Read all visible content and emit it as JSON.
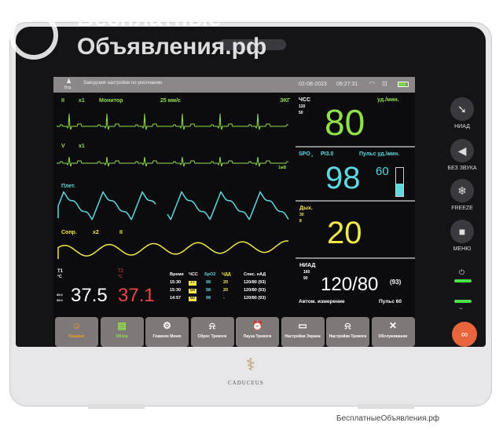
{
  "watermark": {
    "top_line1": "Бесплатные",
    "top_line2": "Объявления.рф",
    "bottom": "БесплатныеОбъявления.рф"
  },
  "header": {
    "patient_type": "Взр.",
    "message": "Заводские настройки по умолчанию",
    "date": "02-08-2023",
    "time": "09:27:31"
  },
  "ecg1": {
    "lead": "II",
    "gain": "x1",
    "mode": "Монитор",
    "speed": "25 мм/с",
    "label": "ЭКГ"
  },
  "ecg2": {
    "lead": "V",
    "gain": "x1",
    "scale": "1мВ"
  },
  "pleth": {
    "label": "Плет."
  },
  "resp_wave": {
    "label": "Сопр.",
    "gain": "x2",
    "lead": "II"
  },
  "hr": {
    "label": "ЧСС",
    "high": "120",
    "low": "50",
    "unit": "уд./мин.",
    "value": "80"
  },
  "spo2": {
    "label": "SPO",
    "sub": "2",
    "pi": "PI3.0",
    "pulse_label": "Пульс уд./мин.",
    "value": "98",
    "pulse": "60",
    "bar_level": 0.45
  },
  "resp": {
    "label": "Дых.",
    "high": "30",
    "low": "8",
    "value": "20"
  },
  "nibp": {
    "label": "НИАД",
    "high": "160",
    "low": "90",
    "value": "120/80",
    "mean": "(93)",
    "mode": "Автом. измерение",
    "pulse": "Пульс 60"
  },
  "temp": {
    "t1_label": "T1",
    "t1_unit": "°C",
    "t1_high": "39.0",
    "t1_low": "35.0",
    "t1": "37.5",
    "t2_label": "T2",
    "t2_unit": "°C",
    "t2": "37.1"
  },
  "trend": {
    "headers": [
      "Время",
      "ЧСС",
      "SpO2",
      "ЧДД",
      "Спис. нАД"
    ],
    "rows": [
      [
        "15:30",
        "77",
        "98",
        "20",
        "120/80 (93)"
      ],
      [
        "15:30",
        "64",
        "98",
        "20",
        "120/80 (93)"
      ],
      [
        "14:57",
        "60",
        "98",
        "-",
        "120/80 (93)"
      ]
    ]
  },
  "buttons": [
    {
      "label": "Пациент",
      "icon": "patient-icon"
    },
    {
      "label": "Обзор",
      "icon": "review-icon"
    },
    {
      "label": "Главное Меню",
      "icon": "gear-icon"
    },
    {
      "label": "Сброс Тревоги",
      "icon": "alarm-reset-icon"
    },
    {
      "label": "Пауза Тревоги",
      "icon": "alarm-pause-icon"
    },
    {
      "label": "Настройки Экрана",
      "icon": "screen-icon"
    },
    {
      "label": "Настройки Тревоги",
      "icon": "alarm-settings-icon"
    },
    {
      "label": "Обслуживание",
      "icon": "tools-icon"
    }
  ],
  "side": {
    "nibp": "НИАД",
    "mute": "БЕЗ ЗВУКА",
    "freeze": "FREEZE",
    "menu": "МЕНЮ"
  },
  "brand": "CADUCEUS",
  "colors": {
    "ecg": "#8fe04a",
    "spo2": "#5fd8e0",
    "resp": "#f1e64a",
    "t2": "#e84848",
    "header": "#8c8788",
    "alarm_button": "#e8643a"
  }
}
